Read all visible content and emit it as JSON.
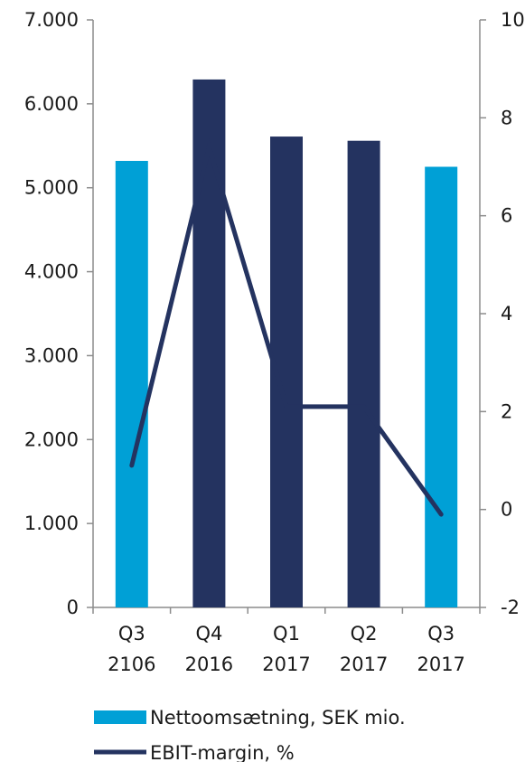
{
  "chart_data": {
    "type": "bar",
    "categories": [
      [
        "Q3",
        "2106"
      ],
      [
        "Q4",
        "2016"
      ],
      [
        "Q1",
        "2017"
      ],
      [
        "Q2",
        "2017"
      ],
      [
        "Q3",
        "2017"
      ]
    ],
    "series": [
      {
        "name": "Nettoomsætning, SEK mio.",
        "kind": "bar",
        "axis": "left",
        "values": [
          5320,
          6290,
          5610,
          5560,
          5250
        ],
        "colors": [
          "#00a0d6",
          "#243360",
          "#243360",
          "#243360",
          "#00a0d6"
        ]
      },
      {
        "name": "EBIT-margin, %",
        "kind": "line",
        "axis": "right",
        "values": [
          0.9,
          7.4,
          2.1,
          2.1,
          -0.1
        ],
        "color": "#243360"
      }
    ],
    "y_left": {
      "ylim": [
        0,
        7000
      ],
      "ticks": [
        "0",
        "1.000",
        "2.000",
        "3.000",
        "4.000",
        "5.000",
        "6.000",
        "7.000"
      ],
      "tick_values": [
        0,
        1000,
        2000,
        3000,
        4000,
        5000,
        6000,
        7000
      ]
    },
    "y_right": {
      "ylim": [
        -2,
        10
      ],
      "ticks": [
        "-2",
        "0",
        "2",
        "4",
        "6",
        "8",
        "10"
      ],
      "tick_values": [
        -2,
        0,
        2,
        4,
        6,
        8,
        10
      ]
    },
    "legend_position": "bottom",
    "grid": false,
    "axis_color": "#8c8c8c"
  }
}
